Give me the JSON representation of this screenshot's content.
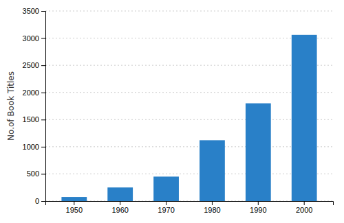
{
  "chart_data": {
    "type": "bar",
    "categories": [
      "1950",
      "1960",
      "1970",
      "1980",
      "1990",
      "2000"
    ],
    "values": [
      75,
      250,
      450,
      1120,
      1800,
      3060
    ],
    "color": "#2980c8",
    "ylabel": "No.of Book Titles",
    "ylim": [
      0,
      3500
    ],
    "yticks": [
      0,
      500,
      1000,
      1500,
      2000,
      2500,
      3000,
      3500
    ],
    "grid": true
  }
}
